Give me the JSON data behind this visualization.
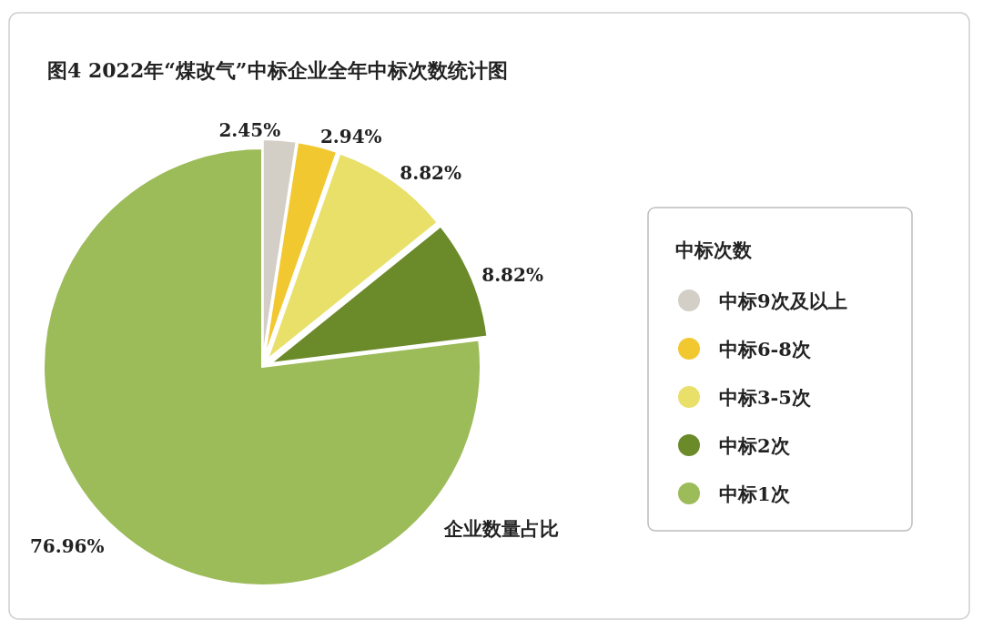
{
  "chart_data": {
    "type": "pie",
    "title": "图4 2022年“煤改气”中标企业全年中标次数统计图",
    "legend_title": "中标次数",
    "legend": "right",
    "categories": [
      "中标9次及以上",
      "中标6-8次",
      "中标3-5次",
      "中标2次",
      "中标1次"
    ],
    "values": [
      2.45,
      2.94,
      8.82,
      8.82,
      76.96
    ],
    "colors": [
      "#d3cfc6",
      "#f2c831",
      "#e9e06a",
      "#6b8a2a",
      "#9cbb59"
    ],
    "value_labels": [
      "2.45%",
      "2.94%",
      "8.82%",
      "8.82%",
      "76.96%"
    ],
    "annotations": [
      "企业数量占比"
    ]
  }
}
